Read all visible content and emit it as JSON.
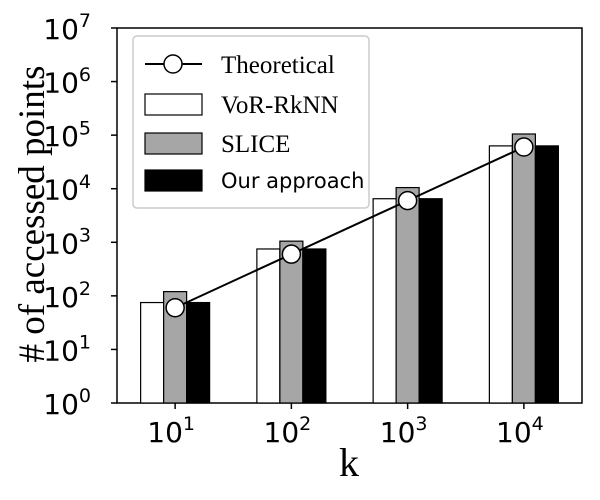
{
  "chart_data": {
    "type": "bar",
    "title": "",
    "xlabel": "k",
    "ylabel": "# of accessed points",
    "yscale": "log",
    "ylim": [
      1,
      10000000
    ],
    "categories": [
      "10^1",
      "10^2",
      "10^3",
      "10^4"
    ],
    "category_labels": [
      {
        "base": "10",
        "exp": "1"
      },
      {
        "base": "10",
        "exp": "2"
      },
      {
        "base": "10",
        "exp": "3"
      },
      {
        "base": "10",
        "exp": "4"
      }
    ],
    "y_ticks": [
      {
        "value": 1,
        "base": "10",
        "exp": "0"
      },
      {
        "value": 10,
        "base": "10",
        "exp": "1"
      },
      {
        "value": 100,
        "base": "10",
        "exp": "2"
      },
      {
        "value": 1000,
        "base": "10",
        "exp": "3"
      },
      {
        "value": 10000,
        "base": "10",
        "exp": "4"
      },
      {
        "value": 100000,
        "base": "10",
        "exp": "5"
      },
      {
        "value": 1000000,
        "base": "10",
        "exp": "6"
      },
      {
        "value": 10000000,
        "base": "10",
        "exp": "7"
      }
    ],
    "series": [
      {
        "name": "VoR-RkNN",
        "kind": "bar",
        "fill": "#ffffff",
        "values": [
          75,
          750,
          6500,
          63000
        ]
      },
      {
        "name": "SLICE",
        "kind": "bar",
        "fill": "#a6a6a6",
        "values": [
          120,
          1050,
          10500,
          105000
        ]
      },
      {
        "name": "Our approach",
        "kind": "bar",
        "fill": "#000000",
        "values": [
          75,
          750,
          6500,
          63000
        ]
      },
      {
        "name": "Theoretical",
        "kind": "line",
        "marker": "circle",
        "values": [
          60,
          600,
          6000,
          60000
        ]
      }
    ],
    "legend": {
      "position": "top-left",
      "entries": [
        "Theoretical",
        "VoR-RkNN",
        "SLICE",
        "Our approach"
      ]
    }
  }
}
